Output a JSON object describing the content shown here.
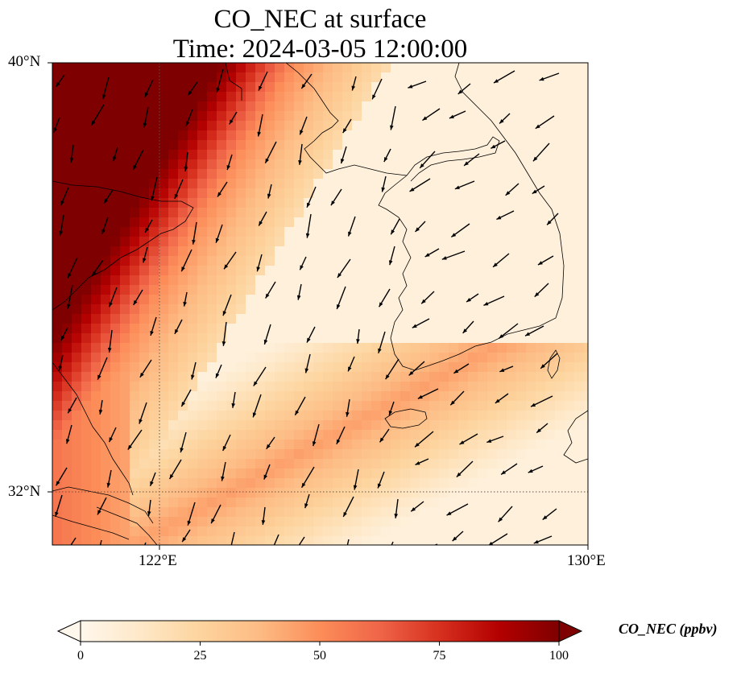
{
  "title": {
    "line1": "CO_NEC at surface",
    "line2": "Time: 2024-03-05 12:00:00"
  },
  "map": {
    "projection": "PlateCarree",
    "lon_range": [
      120,
      130
    ],
    "lat_range": [
      31,
      40
    ],
    "lat_ticks": [
      {
        "value": 40,
        "label": "40°N"
      },
      {
        "value": 32,
        "label": "32°N"
      }
    ],
    "lon_ticks": [
      {
        "value": 122,
        "label": "122°E"
      },
      {
        "value": 130,
        "label": "130°E"
      }
    ],
    "gridlines": {
      "lat": [
        32
      ],
      "lon": [
        122
      ],
      "style": "dotted"
    },
    "coastline_color": "#000000",
    "wind_vector_color": "#000000"
  },
  "colorbar": {
    "label": "CO_NEC (ppbv)",
    "colormap": "OrRd",
    "range": [
      0,
      100
    ],
    "extend": "both",
    "ticks": [
      {
        "value": 0,
        "label": "0"
      },
      {
        "value": 25,
        "label": "25"
      },
      {
        "value": 50,
        "label": "50"
      },
      {
        "value": 75,
        "label": "75"
      },
      {
        "value": 100,
        "label": "100"
      }
    ],
    "colors": [
      "#fff7ec",
      "#fee8c8",
      "#fdd49e",
      "#fdbb84",
      "#fc8d59",
      "#ef6548",
      "#d7301f",
      "#b30000",
      "#7f0000"
    ]
  }
}
